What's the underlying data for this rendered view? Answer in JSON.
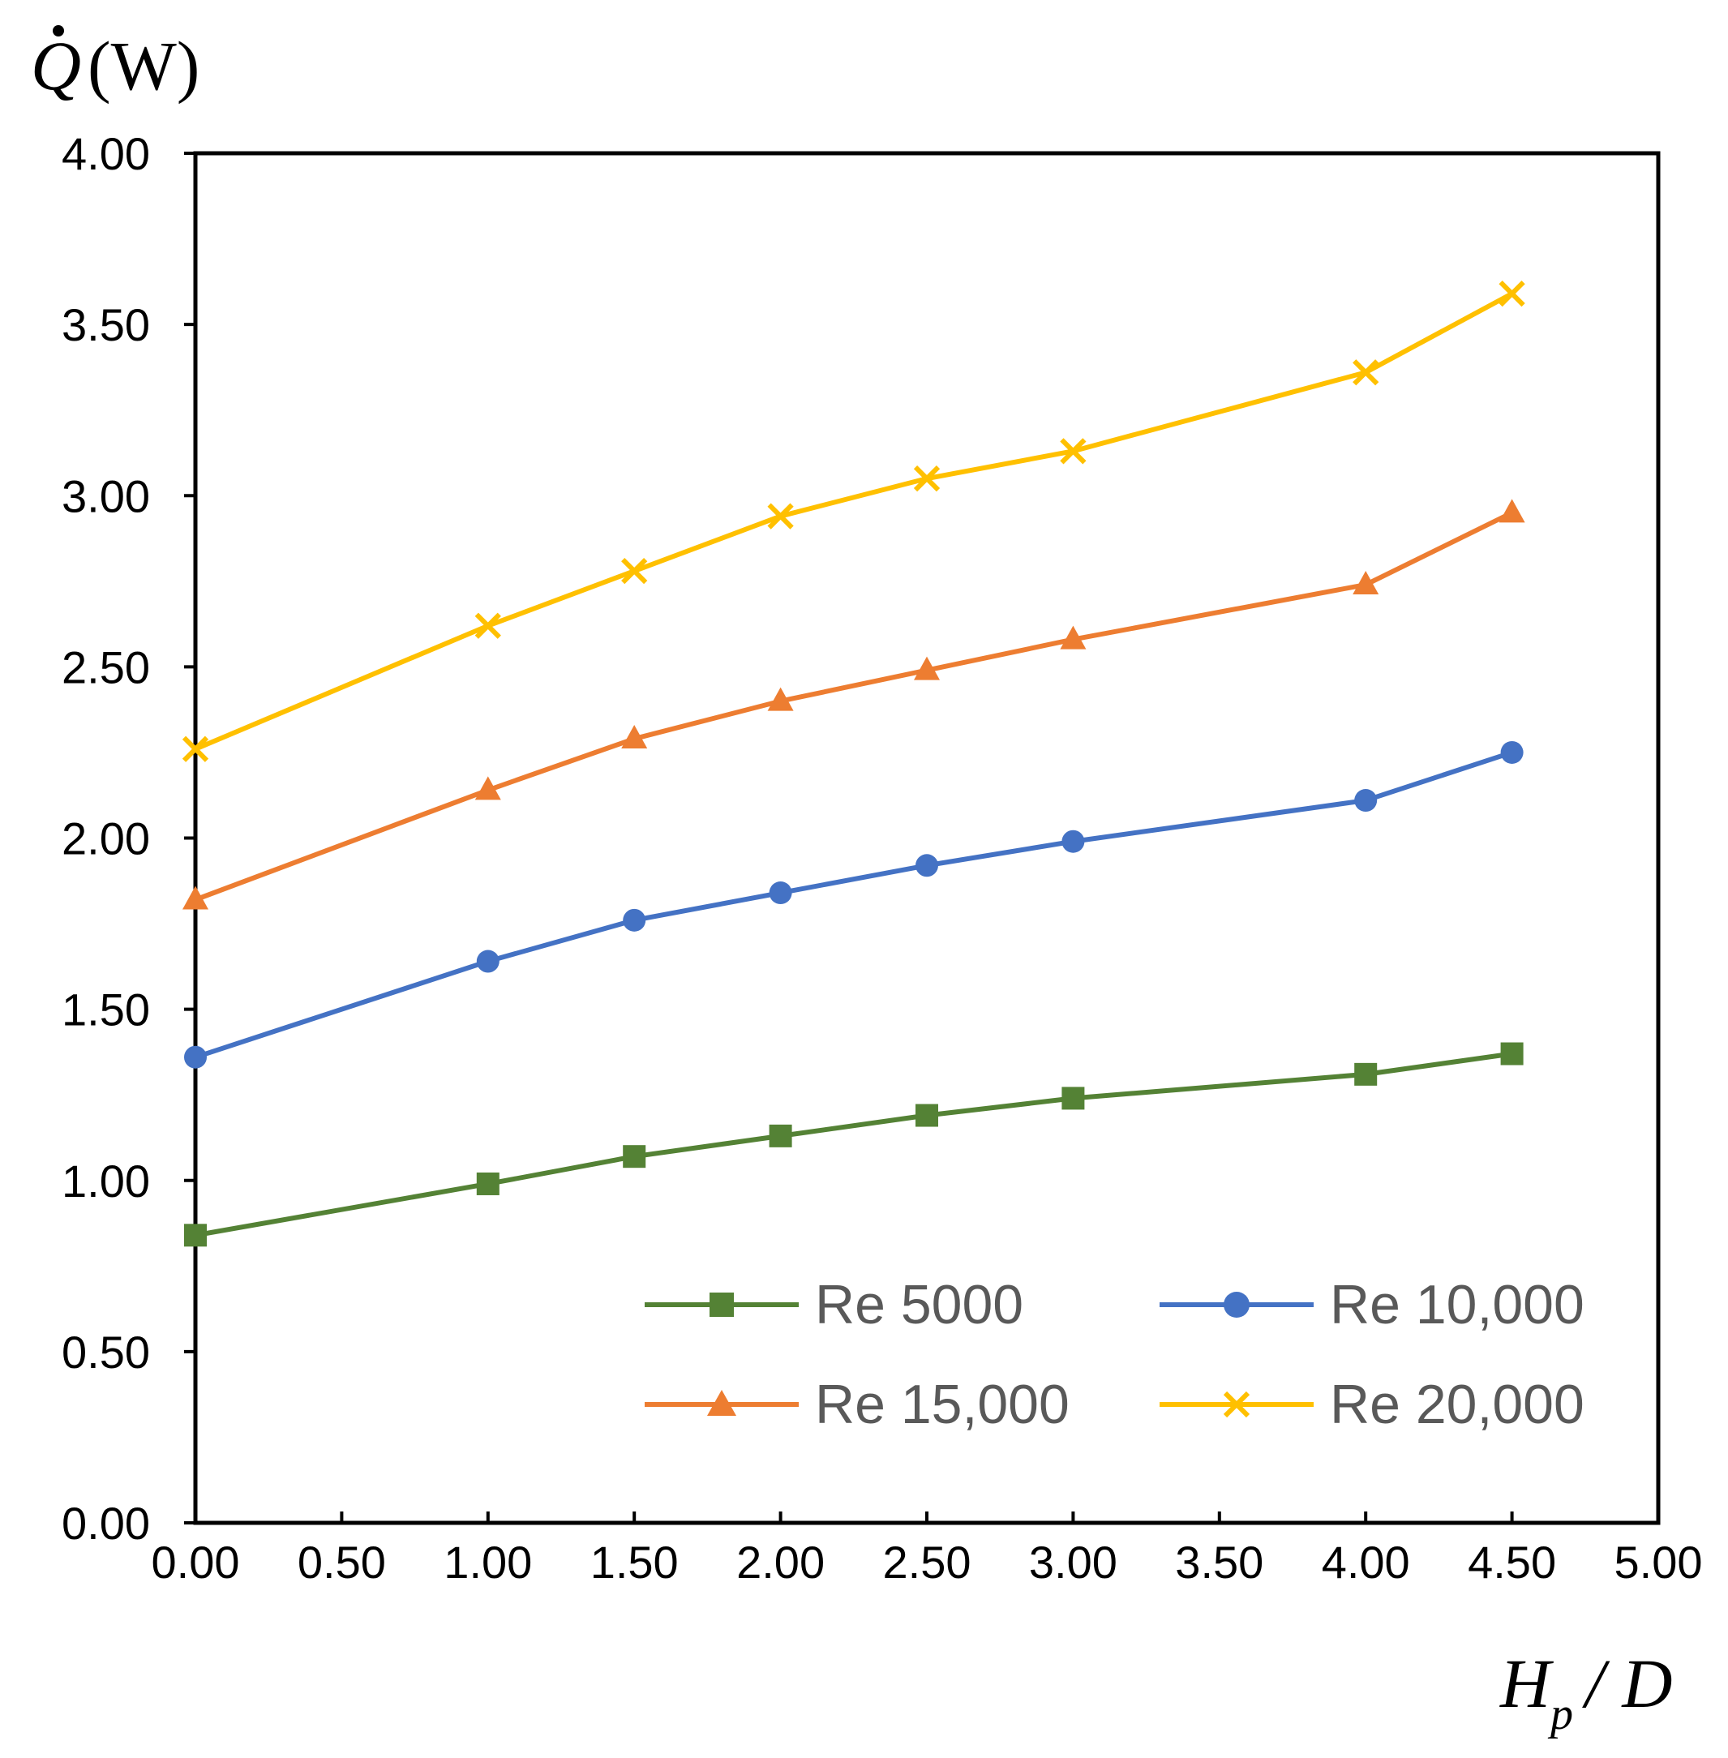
{
  "chart_data": {
    "type": "line",
    "title": "",
    "ylabel_symbol": "Q",
    "ylabel_unit": "(W)",
    "xlabel_main": "H",
    "xlabel_sub": "p",
    "xlabel_rest": "/ D",
    "xlim": [
      0,
      5
    ],
    "ylim": [
      0,
      4
    ],
    "x_ticks": [
      "0.00",
      "0.50",
      "1.00",
      "1.50",
      "2.00",
      "2.50",
      "3.00",
      "3.50",
      "4.00",
      "4.50",
      "5.00"
    ],
    "y_ticks": [
      "0.00",
      "0.50",
      "1.00",
      "1.50",
      "2.00",
      "2.50",
      "3.00",
      "3.50",
      "4.00"
    ],
    "x": [
      0,
      1,
      1.5,
      2,
      2.5,
      3,
      4,
      4.5
    ],
    "grid": false,
    "legend_position": "bottom-right",
    "series": [
      {
        "name": "Re 5000",
        "color": "#548235",
        "marker": "square",
        "values": [
          0.84,
          0.99,
          1.07,
          1.13,
          1.19,
          1.24,
          1.31,
          1.37
        ]
      },
      {
        "name": "Re 10,000",
        "color": "#4472C4",
        "marker": "circle",
        "values": [
          1.36,
          1.64,
          1.76,
          1.84,
          1.92,
          1.99,
          2.11,
          2.25
        ]
      },
      {
        "name": "Re 15,000",
        "color": "#ED7D31",
        "marker": "triangle",
        "values": [
          1.82,
          2.14,
          2.29,
          2.4,
          2.49,
          2.58,
          2.74,
          2.95
        ]
      },
      {
        "name": "Re 20,000",
        "color": "#FFC000",
        "marker": "x",
        "values": [
          2.26,
          2.62,
          2.78,
          2.94,
          3.05,
          3.13,
          3.36,
          3.59
        ]
      }
    ]
  }
}
